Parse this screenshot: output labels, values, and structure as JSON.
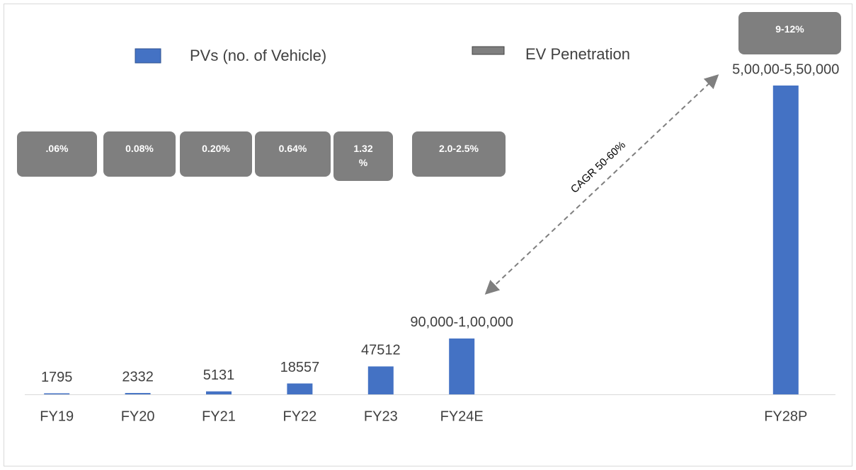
{
  "chart_data": {
    "type": "bar",
    "categories": [
      "FY19",
      "FY20",
      "FY21",
      "FY22",
      "FY23",
      "FY24E",
      null,
      null,
      null,
      "FY28P"
    ],
    "series": [
      {
        "name": "PVs (no. of Vehicle)",
        "color": "#4472c4",
        "values": [
          1795,
          2332,
          5131,
          18557,
          47512,
          95000,
          null,
          null,
          null,
          525000
        ],
        "value_labels": [
          "1795",
          "2332",
          "5131",
          "18557",
          "47512",
          "90,000-1,00,000",
          null,
          null,
          null,
          "5,00,00-5,50,000"
        ]
      }
    ],
    "ev_penetration": {
      "name": "EV Penetration",
      "color": "#7f7f7f",
      "labels": [
        ".06%",
        "0.08%",
        "0.20%",
        "0.64%",
        "1.32 %",
        "2.0-2.5%",
        null,
        null,
        null,
        "9-12%"
      ]
    },
    "annotations": [
      {
        "text": "CAGR 50-60%"
      }
    ]
  }
}
